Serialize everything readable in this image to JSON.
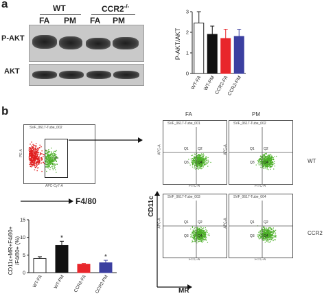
{
  "panel_a": {
    "letter": "a",
    "groups": [
      "WT",
      "CCR2-/-"
    ],
    "group_wt": "WT",
    "group_ccr2_base": "CCR2",
    "group_ccr2_sup": "-/-",
    "lanes": [
      "FA",
      "PM",
      "FA",
      "PM"
    ],
    "row_labels": [
      "P-AKT",
      "AKT"
    ]
  },
  "panel_b": {
    "letter": "b",
    "gate_title": "SVF_0617-Tube_002",
    "gate_x_axis": "APC-Cy7-A",
    "gate_y_axis": "PE-A",
    "gate_name": "F4/80",
    "col_labels": [
      "FA",
      "PM"
    ],
    "row_labels": [
      "WT",
      "CCR2"
    ],
    "plot_titles": [
      "SVF_0617-Tube_001",
      "SVF_0617-Tube_002",
      "SVF_0617-Tube_003",
      "SVF_0617-Tube_004"
    ],
    "quad_axis_x": "FITC-A",
    "quad_axis_y": "APC-A",
    "quadrant_labels": [
      "Q1",
      "Q2",
      "Q3",
      "Q4"
    ],
    "axis_y_marker": "CD11c",
    "axis_x_marker": "MR"
  },
  "colors": {
    "wt_fa": "#ffffff",
    "wt_pm": "#111111",
    "ccr2_fa": "#e8262b",
    "ccr2_pm": "#3b3fa0",
    "gate_red": "#e02020",
    "gate_green": "#4caf28"
  },
  "chart_data": [
    {
      "type": "bar",
      "categories": [
        "WT-FA",
        "WT-PM",
        "CCR2-FA",
        "CCR2-PM"
      ],
      "values": [
        2.45,
        1.9,
        1.7,
        1.8
      ],
      "errors": [
        0.55,
        0.4,
        0.45,
        0.35
      ],
      "ylabel": "P-AKT/AKT",
      "ylim": [
        0,
        3
      ],
      "yticks": [
        "0",
        "1",
        "2",
        "3"
      ],
      "significance": [
        "",
        "",
        "",
        ""
      ]
    },
    {
      "type": "bar",
      "categories": [
        "WT-FA",
        "WT-PM",
        "CCR2-FA",
        "CCR2-PM"
      ],
      "values": [
        4,
        7.7,
        2.4,
        2.8
      ],
      "errors": [
        0.5,
        1.2,
        0.2,
        0.7
      ],
      "ylabel": "CD11c+MR+F4/80+ /F4/80+ (%)",
      "ylim": [
        0,
        15
      ],
      "yticks": [
        "0",
        "5",
        "10",
        "15"
      ],
      "significance": [
        "",
        "*",
        "",
        "*"
      ]
    }
  ]
}
